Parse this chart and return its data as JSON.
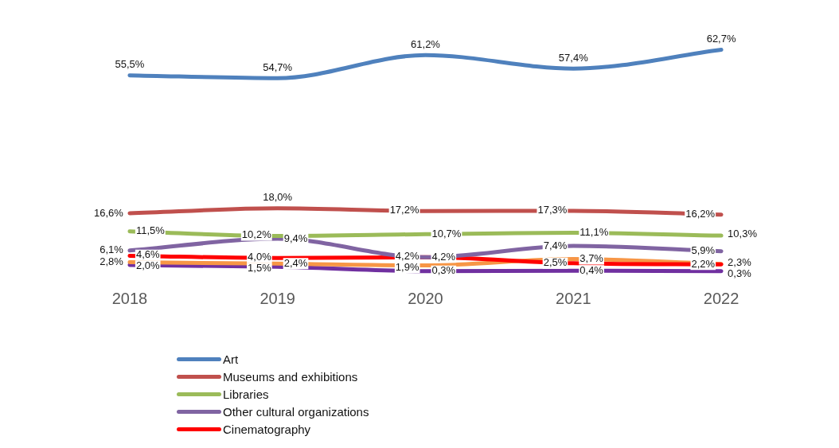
{
  "chart_data": {
    "type": "line",
    "categories": [
      "2018",
      "2019",
      "2020",
      "2021",
      "2022"
    ],
    "grid": false,
    "legend": "bottom",
    "marker": "none",
    "line_style": "solid",
    "tick_labels": "x",
    "series": [
      {
        "name": "Art",
        "color": "#4f81bd",
        "values": [
          55.5,
          54.7,
          61.2,
          57.4,
          62.7
        ],
        "value_labels": [
          "55,5%",
          "54,7%",
          "61,2%",
          "57,4%",
          "62,7%"
        ]
      },
      {
        "name": "Museums and exhibitions",
        "color": "#c0504d",
        "values": [
          16.6,
          18.0,
          17.2,
          17.3,
          16.2
        ],
        "value_labels": [
          "16,6%",
          "18,0%",
          "17,2%",
          "17,3%",
          "16,2%"
        ]
      },
      {
        "name": "Libraries",
        "color": "#9bbb59",
        "values": [
          11.5,
          10.2,
          10.7,
          11.1,
          10.3
        ],
        "value_labels": [
          "11,5%",
          "10,2%",
          "10,7%",
          "11,1%",
          "10,3%"
        ]
      },
      {
        "name": "Other cultural organizations",
        "color": "#8064a2",
        "values": [
          6.1,
          9.4,
          4.2,
          7.4,
          5.9
        ],
        "value_labels": [
          "6,1%",
          "9,4%",
          "4,2%",
          "7,4%",
          "5,9%"
        ]
      },
      {
        "name": "Cinematography",
        "color": "#ff0000",
        "values": [
          4.6,
          4.0,
          4.2,
          2.5,
          2.2
        ],
        "value_labels": [
          "4,6%",
          "4,0%",
          "4,2%",
          "2,5%",
          "2,2%"
        ]
      },
      {
        "color": "#f79646",
        "values": [
          2.8,
          2.4,
          1.9,
          3.7,
          2.3
        ],
        "value_labels": [
          "2,8%",
          "2,4%",
          "1,9%",
          "3,7%",
          "2,3%"
        ]
      },
      {
        "color": "#7030a0",
        "values": [
          2.0,
          1.5,
          0.3,
          0.4,
          0.3
        ],
        "value_labels": [
          "2,0%",
          "1,5%",
          "0,3%",
          "0,4%",
          "0,3%"
        ]
      }
    ]
  }
}
